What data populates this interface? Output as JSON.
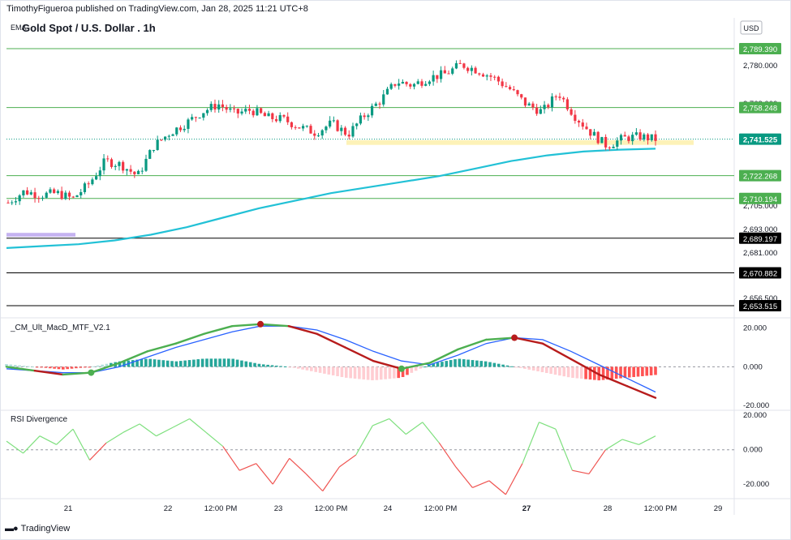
{
  "header": {
    "published": "TimothyFigueroa published on TradingView.com, Jan 28, 2025 11:21 UTC+8",
    "title": "Gold Spot / U.S. Dollar . 1h",
    "ema_label": "EMA",
    "currency": "USD"
  },
  "indicators": {
    "macd_label": "_CM_Ult_MacD_MTF_V2.1",
    "rsi_label": "RSI Divergence"
  },
  "footer": {
    "brand": "TradingView",
    "logo": "tradingview-logo-icon"
  },
  "colors": {
    "up": "#089981",
    "down": "#f23645",
    "ema": "#22c1d6",
    "green_level": "#4caf50",
    "black_level": "#000000",
    "zone_yellow": "#fdf2b8",
    "zone_purple": "#c5b3f0",
    "macd_green": "#4caf50",
    "macd_red": "#b71c1c",
    "signal_blue": "#2962ff",
    "rsi_green": "#7ee07e",
    "rsi_red": "#ef5350"
  },
  "chart_data": [
    {
      "type": "candlestick",
      "title": "Gold Spot / U.S. Dollar . 1h",
      "ylim": [
        2650,
        2795
      ],
      "y_ticks": [
        "2,780.000",
        "2,768.000",
        "2,705.000",
        "2,693.000",
        "2,681.000",
        "2,656.500"
      ],
      "x_ticks": [
        "21",
        "22",
        "12:00 PM",
        "23",
        "12:00 PM",
        "24",
        "12:00 PM",
        "27",
        "28",
        "12:00 PM",
        "29"
      ],
      "levels": [
        {
          "label": "2,789.390",
          "value": 2789.39,
          "color": "green"
        },
        {
          "label": "2,758.248",
          "value": 2758.248,
          "color": "green"
        },
        {
          "label": "2,722.268",
          "value": 2722.268,
          "color": "green"
        },
        {
          "label": "2,710.194",
          "value": 2710.194,
          "color": "green"
        },
        {
          "label": "2,689.197",
          "value": 2689.197,
          "color": "black"
        },
        {
          "label": "2,670.882",
          "value": 2670.882,
          "color": "black"
        },
        {
          "label": "2,653.515",
          "value": 2653.515,
          "color": "black"
        }
      ],
      "current_price": {
        "label": "2,741.525",
        "value": 2741.525
      },
      "zones": [
        {
          "name": "support-zone",
          "from": 2738.5,
          "to": 2741.0
        },
        {
          "name": "purple-zone",
          "from": 2690.0,
          "to": 2692.0
        }
      ],
      "ema_values": [
        2684,
        2685,
        2686,
        2688,
        2691,
        2695,
        2700,
        2705,
        2709,
        2713,
        2716,
        2719,
        2722,
        2726,
        2730,
        2733,
        2735,
        2736,
        2736.5
      ],
      "close_values": [
        2708,
        2714,
        2712,
        2713,
        2710,
        2718,
        2730,
        2728,
        2722,
        2738,
        2745,
        2750,
        2756,
        2760,
        2755,
        2757,
        2753,
        2752,
        2748,
        2745,
        2750,
        2744,
        2754,
        2762,
        2772,
        2770,
        2774,
        2776,
        2781,
        2778,
        2774,
        2768,
        2760,
        2756,
        2766,
        2754,
        2745,
        2738,
        2742,
        2743,
        2741.5
      ]
    },
    {
      "type": "line",
      "title": "_CM_Ult_MacD_MTF_V2.1",
      "y_ticks": [
        "20.000",
        "0.000",
        "-20.000"
      ],
      "ylim": [
        -22,
        24
      ],
      "series": [
        {
          "values": [
            0,
            -2,
            -4,
            -3,
            2,
            8,
            12,
            17,
            21,
            22,
            21,
            17,
            10,
            3,
            -1,
            2,
            9,
            14,
            15,
            12,
            4,
            -4,
            -10,
            -16
          ]
        },
        {
          "values": [
            -1,
            -2,
            -3,
            -3,
            0,
            5,
            10,
            14,
            18,
            21,
            21,
            19,
            14,
            8,
            3,
            1,
            6,
            12,
            15,
            14,
            8,
            1,
            -6,
            -13
          ]
        }
      ]
    },
    {
      "type": "line",
      "title": "RSI Divergence",
      "y_ticks": [
        "20.000",
        "0.000",
        "-20.000"
      ],
      "ylim": [
        -27,
        22
      ],
      "series": [
        {
          "values": [
            5,
            -2,
            8,
            3,
            12,
            -6,
            4,
            10,
            15,
            8,
            13,
            18,
            10,
            2,
            -12,
            -8,
            -20,
            -5,
            -14,
            -24,
            -10,
            -3,
            14,
            18,
            9,
            16,
            4,
            -10,
            -22,
            -18,
            -26,
            -8,
            16,
            12,
            -12,
            -14,
            0,
            6,
            3,
            8
          ]
        }
      ]
    }
  ]
}
